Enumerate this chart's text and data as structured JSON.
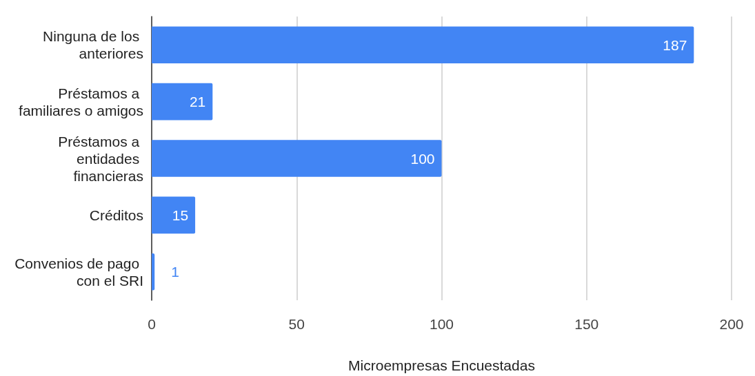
{
  "chart_data": {
    "type": "bar",
    "orientation": "horizontal",
    "categories": [
      "Ninguna de los anteriores",
      "Préstamos a familiares o amigos",
      "Préstamos a entidades financieras",
      "Créditos",
      "Convenios de pago con el SRI"
    ],
    "values": [
      187,
      21,
      100,
      15,
      1
    ],
    "color": "#4285f4",
    "xlim": [
      0,
      200
    ],
    "xticks": [
      0,
      50,
      100,
      150,
      200
    ],
    "xlabel": "Microempresas Encuestadas",
    "grid": "x",
    "data_labels": true
  }
}
